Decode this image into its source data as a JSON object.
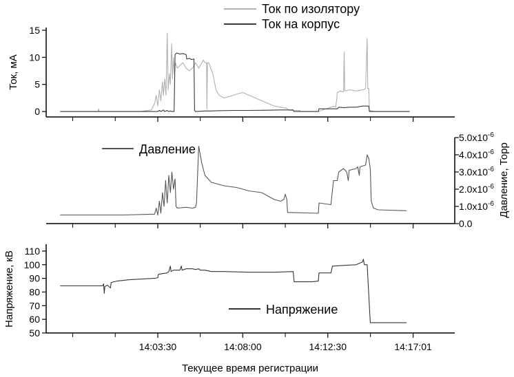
{
  "chart_data": {
    "type": "line",
    "xlabel": "Текущее время регистрации",
    "x_ticks": [
      "14:03:30",
      "14:08:00",
      "14:12:30",
      "14:17:01",
      "–"
    ],
    "x_ticks_numeric": [
      210,
      480,
      750,
      1021,
      1300
    ],
    "x_axis_unit": "seconds after 14:00:00",
    "panels": [
      {
        "id": "current",
        "ylabel": "Ток, мА",
        "ylim": [
          -1,
          15.5
        ],
        "y_ticks": [
          0,
          5,
          10,
          15
        ],
        "y_tick_labels": [
          "0",
          "5",
          "10",
          "15"
        ],
        "axis_side": "left",
        "series": [
          {
            "name": "Ток по изолятору",
            "color": "#b0b0b0",
            "points": [
              [
                -100,
                0
              ],
              [
                20,
                0
              ],
              [
                22,
                0.5
              ],
              [
                24,
                0
              ],
              [
                70,
                0
              ],
              [
                155,
                0
              ],
              [
                190,
                0.3
              ],
              [
                200,
                1.5
              ],
              [
                205,
                3
              ],
              [
                210,
                1
              ],
              [
                215,
                4
              ],
              [
                220,
                2
              ],
              [
                225,
                5.5
              ],
              [
                228,
                3
              ],
              [
                232,
                6
              ],
              [
                236,
                3
              ],
              [
                240,
                14.5
              ],
              [
                243,
                4
              ],
              [
                247,
                7
              ],
              [
                250,
                5
              ],
              [
                254,
                12.5
              ],
              [
                257,
                6
              ],
              [
                260,
                10
              ],
              [
                263,
                7
              ],
              [
                266,
                9
              ],
              [
                272,
                8
              ],
              [
                280,
                8.5
              ],
              [
                290,
                9
              ],
              [
                300,
                8
              ],
              [
                310,
                7.5
              ],
              [
                320,
                8
              ],
              [
                330,
                9
              ],
              [
                340,
                8
              ],
              [
                350,
                9
              ],
              [
                355,
                9.5
              ],
              [
                360,
                9
              ],
              [
                365,
                9
              ],
              [
                366,
                0.5
              ],
              [
                368,
                9
              ],
              [
                372,
                9
              ],
              [
                378,
                8
              ],
              [
                385,
                7
              ],
              [
                395,
                4
              ],
              [
                405,
                3
              ],
              [
                420,
                2.5
              ],
              [
                440,
                2.8
              ],
              [
                460,
                3.2
              ],
              [
                480,
                3.5
              ],
              [
                500,
                3
              ],
              [
                520,
                2.5
              ],
              [
                540,
                2
              ],
              [
                560,
                1.5
              ],
              [
                580,
                1
              ],
              [
                600,
                0.8
              ],
              [
                620,
                0.6
              ],
              [
                625,
                0.3
              ],
              [
                630,
                0.2
              ],
              [
                660,
                0.2
              ],
              [
                665,
                0
              ],
              [
                720,
                0
              ],
              [
                770,
                1
              ],
              [
                775,
                0.8
              ],
              [
                778,
                2
              ],
              [
                780,
                3.5
              ],
              [
                790,
                3.8
              ],
              [
                800,
                3.6
              ],
              [
                802,
                11
              ],
              [
                804,
                3.8
              ],
              [
                820,
                4
              ],
              [
                840,
                3.8
              ],
              [
                860,
                4
              ],
              [
                870,
                4.2
              ],
              [
                875,
                13.5
              ],
              [
                877,
                4.2
              ],
              [
                880,
                4.3
              ],
              [
                882,
                0.2
              ],
              [
                900,
                0
              ],
              [
                1010,
                0
              ]
            ]
          },
          {
            "name": "Ток на корпус",
            "color": "#3a3a3a",
            "points": [
              [
                -100,
                0
              ],
              [
                200,
                0
              ],
              [
                210,
                0
              ],
              [
                215,
                0.2
              ],
              [
                220,
                0
              ],
              [
                228,
                0.3
              ],
              [
                232,
                0
              ],
              [
                240,
                0.2
              ],
              [
                244,
                0
              ],
              [
                250,
                0.1
              ],
              [
                255,
                0
              ],
              [
                262,
                0
              ],
              [
                265,
                10.5
              ],
              [
                270,
                10.8
              ],
              [
                280,
                10.6
              ],
              [
                290,
                10.7
              ],
              [
                300,
                10.5
              ],
              [
                302,
                9.7
              ],
              [
                310,
                9.8
              ],
              [
                318,
                9.6
              ],
              [
                325,
                9.7
              ],
              [
                327,
                0.2
              ],
              [
                330,
                0
              ],
              [
                360,
                0.1
              ],
              [
                380,
                0.1
              ],
              [
                400,
                0.15
              ],
              [
                450,
                0.2
              ],
              [
                500,
                0.2
              ],
              [
                560,
                0.25
              ],
              [
                600,
                0.3
              ],
              [
                630,
                0.3
              ],
              [
                640,
                0.3
              ],
              [
                642,
                0
              ],
              [
                720,
                0
              ],
              [
                722,
                0.5
              ],
              [
                780,
                0.5
              ],
              [
                785,
                0.8
              ],
              [
                800,
                0.7
              ],
              [
                820,
                0.8
              ],
              [
                840,
                0.8
              ],
              [
                860,
                1
              ],
              [
                870,
                1
              ],
              [
                880,
                1
              ],
              [
                882,
                0
              ],
              [
                900,
                0
              ],
              [
                1010,
                0
              ]
            ]
          }
        ]
      },
      {
        "id": "pressure",
        "ylabel": "Давление, Торр",
        "ylim": [
          0,
          5e-06
        ],
        "y_ticks": [
          0,
          1e-06,
          2e-06,
          3e-06,
          4e-06,
          5e-06
        ],
        "y_tick_labels": [
          "0.0",
          "1.0x10",
          "2.0x10",
          "3.0x10",
          "4.0x10",
          "5.0x10"
        ],
        "y_tick_exponent": "-6",
        "axis_side": "right",
        "series": [
          {
            "name": "Давление",
            "color": "#555555",
            "points": [
              [
                -100,
                5e-07
              ],
              [
                100,
                5e-07
              ],
              [
                200,
                5.5e-07
              ],
              [
                205,
                9e-07
              ],
              [
                210,
                5e-07
              ],
              [
                215,
                1.3e-06
              ],
              [
                220,
                6e-07
              ],
              [
                225,
                1.8e-06
              ],
              [
                230,
                1e-06
              ],
              [
                235,
                2.5e-06
              ],
              [
                240,
                1.2e-06
              ],
              [
                245,
                2.8e-06
              ],
              [
                250,
                1.8e-06
              ],
              [
                255,
                3e-06
              ],
              [
                260,
                2e-06
              ],
              [
                265,
                2.6e-06
              ],
              [
                268,
                1e-06
              ],
              [
                272,
                9e-07
              ],
              [
                300,
                9.5e-07
              ],
              [
                320,
                9e-07
              ],
              [
                330,
                9.5e-07
              ],
              [
                333,
                1.2e-06
              ],
              [
                340,
                4.5e-06
              ],
              [
                350,
                3.5e-06
              ],
              [
                360,
                2.8e-06
              ],
              [
                380,
                2.4e-06
              ],
              [
                420,
                2.2e-06
              ],
              [
                460,
                2.1e-06
              ],
              [
                500,
                1.9e-06
              ],
              [
                540,
                1.8e-06
              ],
              [
                560,
                1.6e-06
              ],
              [
                580,
                1.4e-06
              ],
              [
                600,
                1.3e-06
              ],
              [
                610,
                1.4e-06
              ],
              [
                615,
                1.7e-06
              ],
              [
                620,
                1.4e-06
              ],
              [
                622,
                6.5e-07
              ],
              [
                720,
                6e-07
              ],
              [
                722,
                1.2e-06
              ],
              [
                760,
                1.1e-06
              ],
              [
                768,
                2.5e-06
              ],
              [
                780,
                2.5e-06
              ],
              [
                785,
                3e-06
              ],
              [
                800,
                3.2e-06
              ],
              [
                810,
                3e-06
              ],
              [
                815,
                2.5e-06
              ],
              [
                818,
                3.1e-06
              ],
              [
                840,
                3.2e-06
              ],
              [
                845,
                3.3e-06
              ],
              [
                850,
                2.8e-06
              ],
              [
                852,
                3.3e-06
              ],
              [
                870,
                3.4e-06
              ],
              [
                875,
                4e-06
              ],
              [
                880,
                3.8e-06
              ],
              [
                885,
                3.2e-06
              ],
              [
                888,
                1.3e-06
              ],
              [
                895,
                9e-07
              ],
              [
                910,
                8e-07
              ],
              [
                1000,
                7.5e-07
              ]
            ]
          }
        ]
      },
      {
        "id": "voltage",
        "ylabel": "Напряжение, кВ",
        "ylim": [
          50,
          115
        ],
        "y_ticks": [
          50,
          60,
          70,
          80,
          90,
          100,
          110
        ],
        "y_tick_labels": [
          "50",
          "60",
          "70",
          "80",
          "90",
          "100",
          "110"
        ],
        "axis_side": "left",
        "series": [
          {
            "name": "Напряжение",
            "color": "#333333",
            "points": [
              [
                -100,
                84.5
              ],
              [
                0,
                84.5
              ],
              [
                35,
                84.5
              ],
              [
                38,
                86
              ],
              [
                40,
                79
              ],
              [
                42,
                84
              ],
              [
                50,
                85
              ],
              [
                60,
                83
              ],
              [
                62,
                87
              ],
              [
                80,
                88
              ],
              [
                120,
                89
              ],
              [
                160,
                89.5
              ],
              [
                200,
                90
              ],
              [
                210,
                90.5
              ],
              [
                212,
                93
              ],
              [
                240,
                94
              ],
              [
                245,
                95
              ],
              [
                250,
                99
              ],
              [
                252,
                95
              ],
              [
                260,
                96
              ],
              [
                280,
                96
              ],
              [
                285,
                99
              ],
              [
                287,
                96
              ],
              [
                300,
                97
              ],
              [
                320,
                97
              ],
              [
                330,
                96.5
              ],
              [
                340,
                97
              ],
              [
                345,
                96
              ],
              [
                360,
                96
              ],
              [
                380,
                95
              ],
              [
                420,
                95
              ],
              [
                500,
                94.5
              ],
              [
                580,
                94.5
              ],
              [
                640,
                95
              ],
              [
                643,
                87.5
              ],
              [
                700,
                87.5
              ],
              [
                720,
                88
              ],
              [
                722,
                94
              ],
              [
                760,
                94
              ],
              [
                765,
                99
              ],
              [
                800,
                99.5
              ],
              [
                840,
                100
              ],
              [
                850,
                101
              ],
              [
                860,
                102
              ],
              [
                863,
                104
              ],
              [
                866,
                100
              ],
              [
                875,
                100
              ],
              [
                885,
                57.5
              ],
              [
                950,
                57.5
              ],
              [
                1000,
                57.5
              ]
            ]
          }
        ]
      }
    ]
  }
}
